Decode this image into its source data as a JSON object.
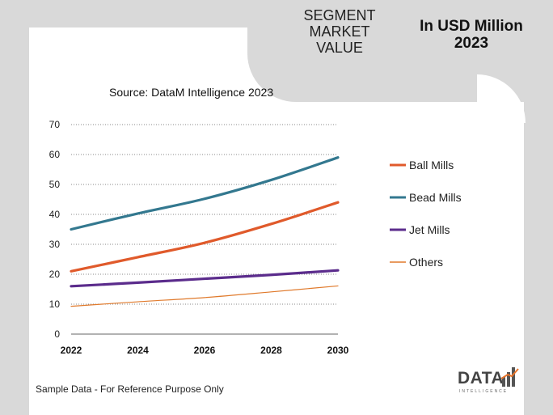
{
  "header": {
    "segment_lines": [
      "SEGMENT",
      "MARKET",
      "VALUE"
    ],
    "unit_lines": [
      "In USD Million",
      "2023"
    ]
  },
  "source_text": "Source: DataM Intelligence  2023",
  "footnote": "Sample Data - For Reference Purpose Only",
  "logo": {
    "word": "DATA",
    "sub": "INTELLIGENCE",
    "accent": "#e8742a"
  },
  "chart_data": {
    "type": "line",
    "title": "",
    "xlabel": "",
    "ylabel": "",
    "x": [
      2022,
      2024,
      2026,
      2028,
      2030
    ],
    "x_tick_labels": [
      "2022",
      "2024",
      "2026",
      "2028",
      "2030"
    ],
    "ylim": [
      0,
      70
    ],
    "y_ticks": [
      0,
      10,
      20,
      30,
      40,
      50,
      60,
      70
    ],
    "grid": "horizontal-dotted",
    "legend_position": "right",
    "series": [
      {
        "name": "Ball Mills",
        "color": "#e05a2b",
        "width": 3.2,
        "values": [
          21,
          25.7,
          30.5,
          36.8,
          44
        ]
      },
      {
        "name": "Bead Mills",
        "color": "#33788f",
        "width": 3.2,
        "values": [
          35,
          40.3,
          45.2,
          51.5,
          59
        ]
      },
      {
        "name": "Jet Mills",
        "color": "#5b2c8c",
        "width": 3.2,
        "values": [
          16,
          17.2,
          18.5,
          19.8,
          21.3
        ]
      },
      {
        "name": "Others",
        "color": "#e07a2c",
        "width": 1.2,
        "values": [
          9.3,
          10.8,
          12.2,
          14.1,
          16.1
        ]
      }
    ]
  }
}
